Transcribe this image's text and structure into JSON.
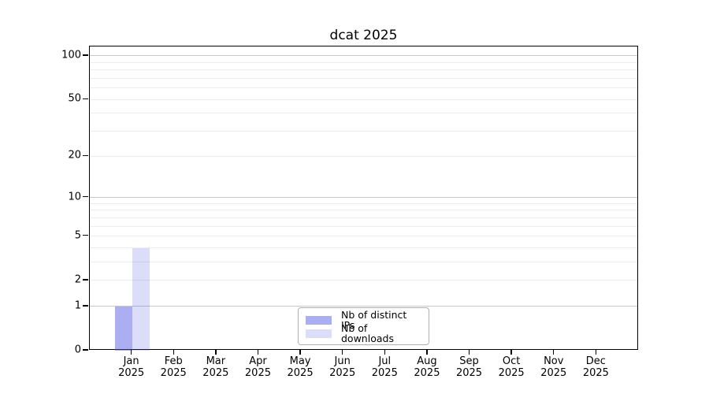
{
  "chart_data": {
    "type": "bar",
    "title": "dcat 2025",
    "categories": [
      "Jan",
      "Feb",
      "Mar",
      "Apr",
      "May",
      "Jun",
      "Jul",
      "Aug",
      "Sep",
      "Oct",
      "Nov",
      "Dec"
    ],
    "category_year": "2025",
    "series": [
      {
        "name": "Nb of distinct IPs",
        "color": "rgba(80,85,225,0.48)",
        "values": [
          1,
          0,
          0,
          0,
          0,
          0,
          0,
          0,
          0,
          0,
          0,
          0
        ]
      },
      {
        "name": "Nb of downloads",
        "color": "rgba(80,85,225,0.20)",
        "values": [
          4,
          0,
          0,
          0,
          0,
          0,
          0,
          0,
          0,
          0,
          0,
          0
        ]
      }
    ],
    "xlabel": "",
    "ylabel": "",
    "yscale": "log1p",
    "ylim": [
      0,
      116
    ],
    "yticks": [
      0,
      1,
      2,
      5,
      10,
      20,
      50,
      100
    ],
    "gridlines": {
      "major": [
        1,
        10,
        100
      ],
      "minor": [
        2,
        3,
        4,
        5,
        6,
        7,
        8,
        9,
        20,
        30,
        40,
        50,
        60,
        70,
        80,
        90
      ]
    },
    "legend_position": "lower center",
    "colors": {
      "bar_distinct_ips": "#a9aaf1",
      "bar_downloads": "#dbdcf9",
      "major_grid": "#c6c6c6",
      "minor_grid": "#ececec",
      "axis": "#000000",
      "text": "#000000",
      "legend_border": "#b0b0b0",
      "background": "#ffffff"
    }
  }
}
